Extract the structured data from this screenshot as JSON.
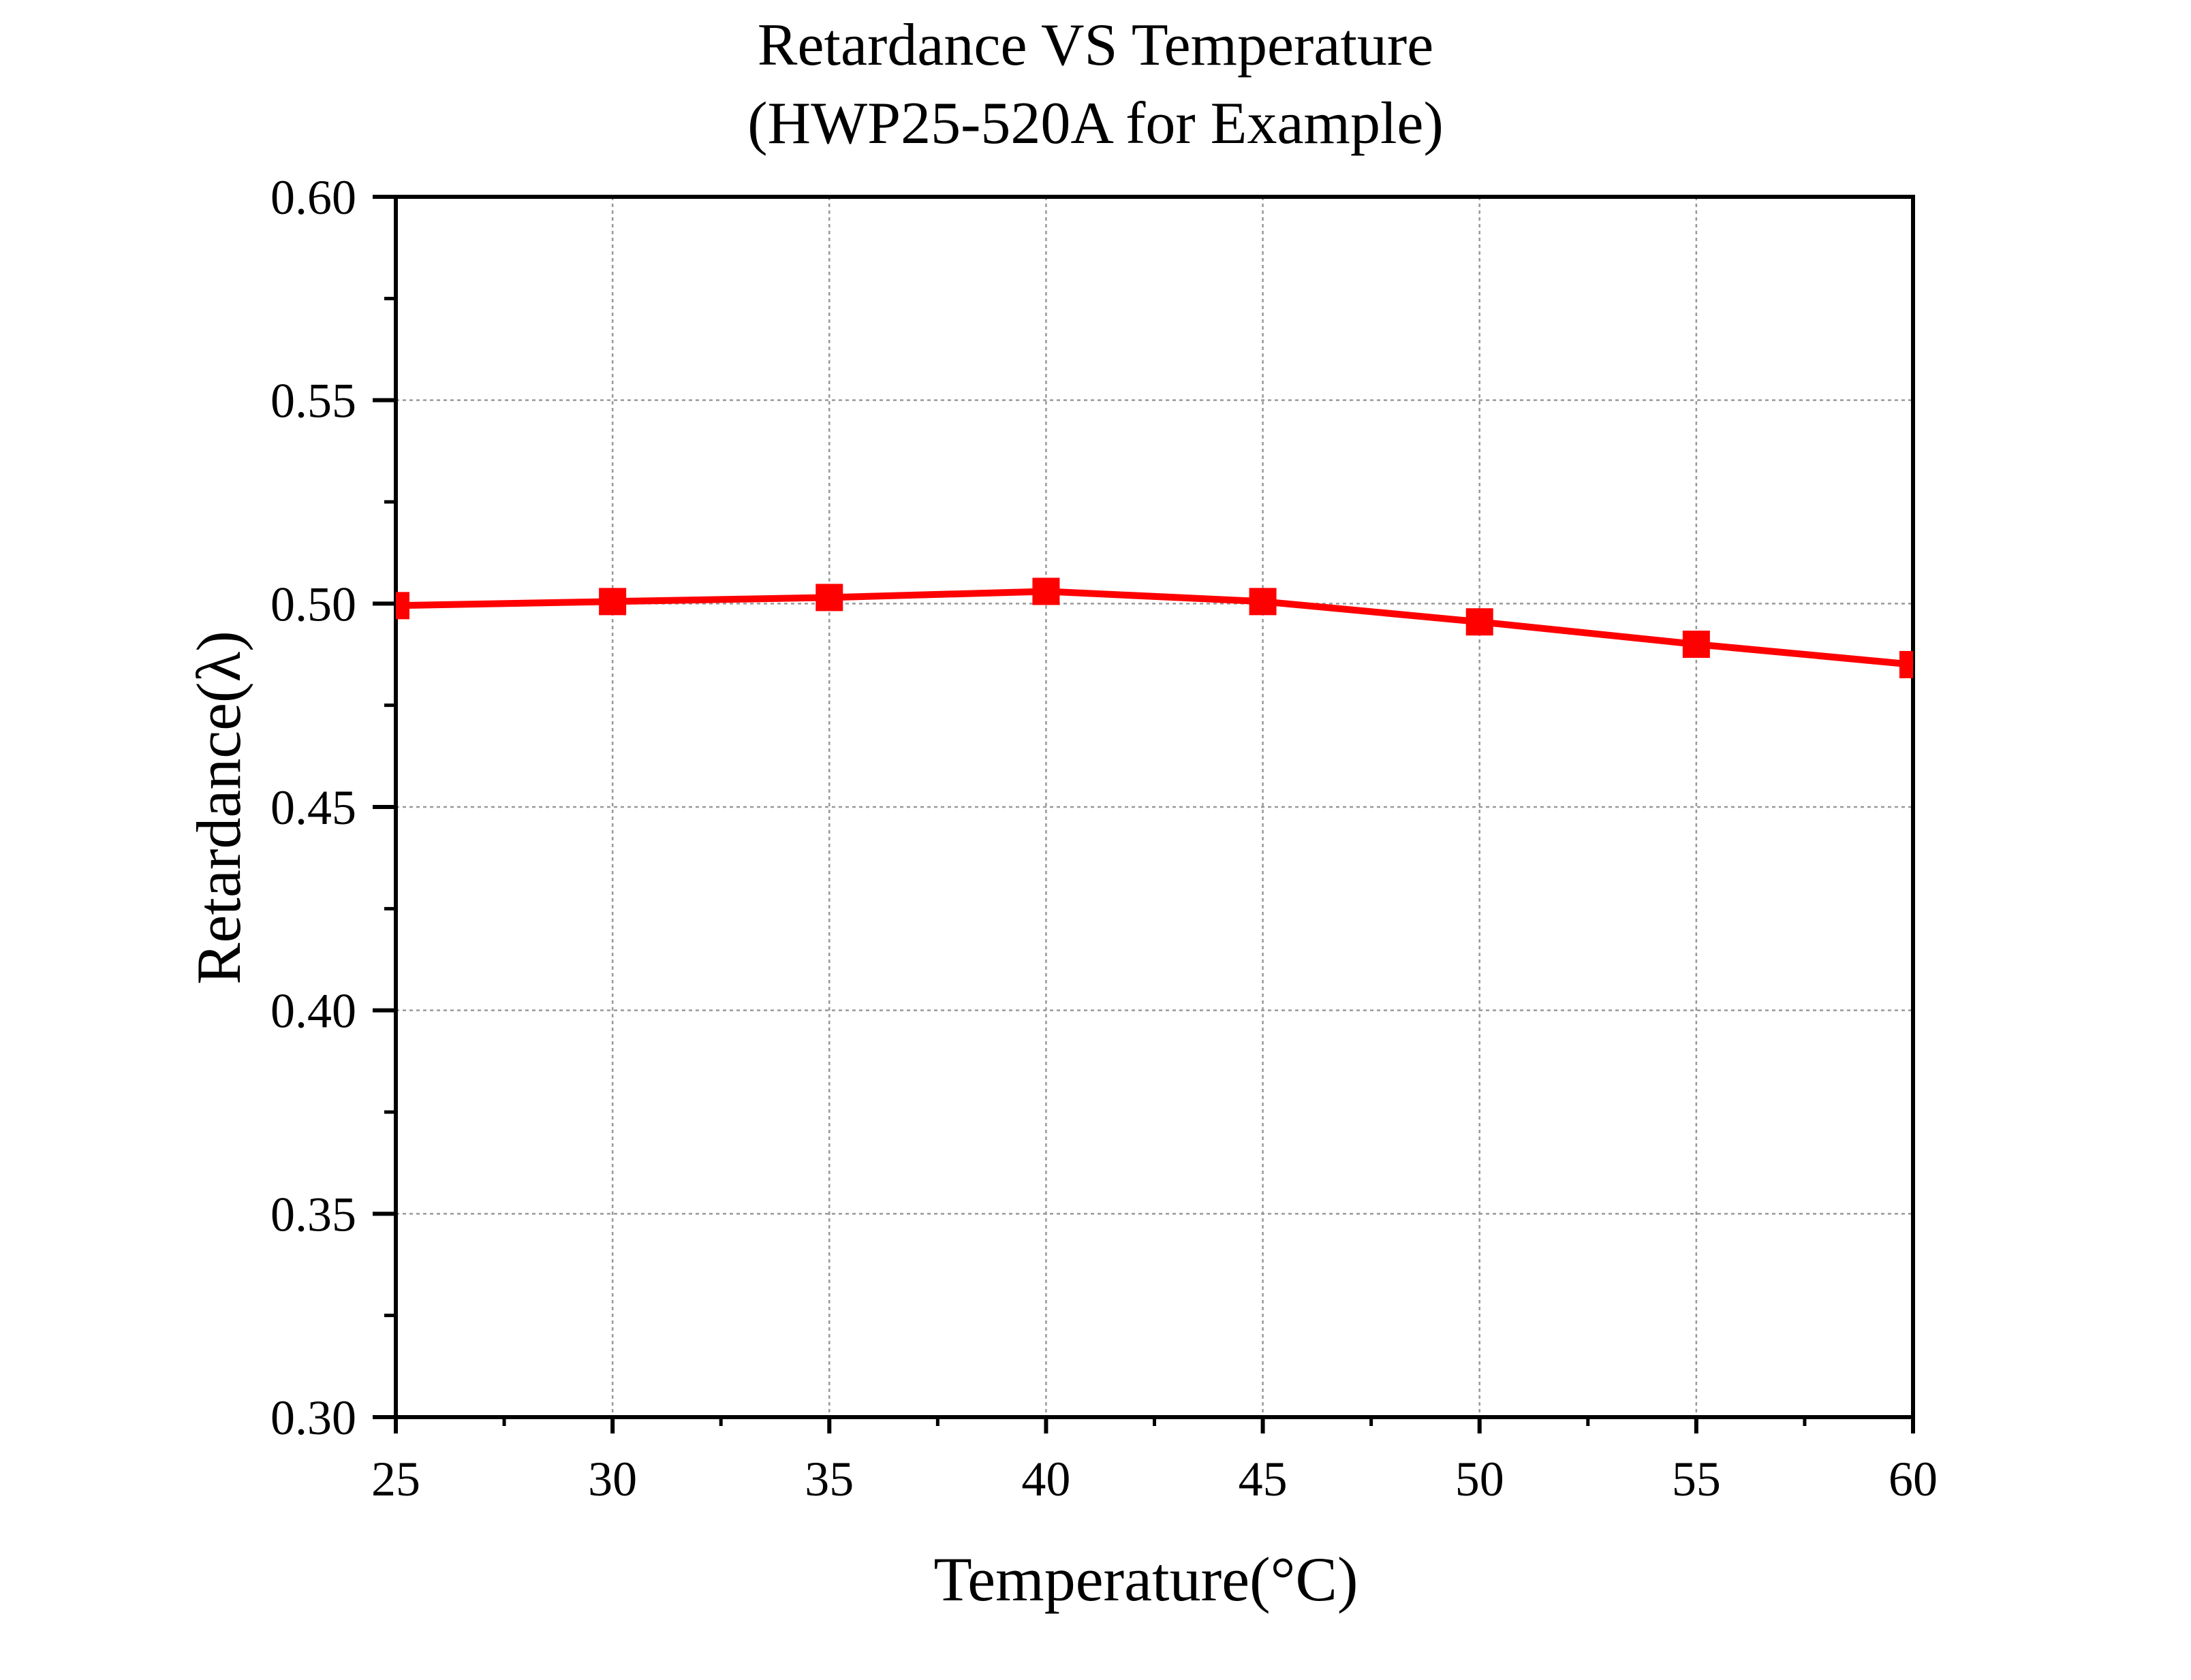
{
  "chart_data": {
    "type": "line",
    "title": "Retardance VS Temperature",
    "subtitle": "(HWP25-520A for Example)",
    "xlabel": "Temperature(°C)",
    "ylabel": "Retardance(λ)",
    "xlim": [
      25,
      60
    ],
    "ylim": [
      0.3,
      0.6
    ],
    "x_ticks": [
      "25",
      "30",
      "35",
      "40",
      "45",
      "50",
      "55",
      "60"
    ],
    "y_ticks": [
      "0.30",
      "0.35",
      "0.40",
      "0.45",
      "0.50",
      "0.55",
      "0.60"
    ],
    "grid": true,
    "series": [
      {
        "x": [
          25,
          30,
          35,
          40,
          45,
          50,
          55,
          60
        ],
        "values": [
          0.4995,
          0.5005,
          0.5015,
          0.503,
          0.5005,
          0.4955,
          0.49,
          0.485
        ],
        "marker": "square"
      }
    ],
    "colors": {
      "series": "#ff0000",
      "axis": "#000000",
      "grid": "#999999"
    }
  }
}
